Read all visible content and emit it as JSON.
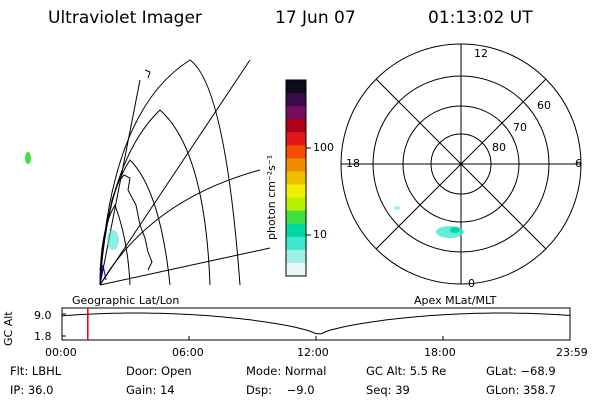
{
  "header": {
    "instrument": "Ultraviolet Imager",
    "date": "17 Jun 07",
    "time": "01:13:02 UT"
  },
  "colorbar": {
    "unit_label": "photon cm⁻²s⁻¹",
    "ticks": [
      "100",
      "10"
    ],
    "colors": [
      "#0b0b1e",
      "#3a0a4a",
      "#7a0a5a",
      "#b0001e",
      "#e01818",
      "#f05000",
      "#f08c00",
      "#f0c000",
      "#f0f000",
      "#b4f000",
      "#40e040",
      "#00d8a0",
      "#40e8d0",
      "#a0f0e8",
      "#e8f8f8"
    ]
  },
  "left_panel": {
    "label": "Geographic Lat/Lon"
  },
  "polar_panel": {
    "label": "Apex  MLat/MLT",
    "lat_labels": [
      "60",
      "70",
      "80"
    ],
    "mlt_labels": [
      "12",
      "18",
      "6",
      "0"
    ]
  },
  "altitude_plot": {
    "ylabel": "GC Alt",
    "yticks": [
      "9.0",
      "1.8"
    ],
    "xticks": [
      "00:00",
      "06:00",
      "12:00",
      "18:00",
      "23:59"
    ],
    "current_time_fraction": 0.0508,
    "marker_color": "#e00000"
  },
  "info": {
    "filter": "Flt: LBHL",
    "door": "Door: Open",
    "mode": "Mode: Normal",
    "gc_alt": "GC Alt: 5.5 Re",
    "glat": "GLat: −68.9",
    "ip": "IP: 36.0",
    "gain": "Gain: 14",
    "dsp": "Dsp:    −9.0",
    "seq": "Seq: 39",
    "glon": "GLon: 358.7"
  }
}
